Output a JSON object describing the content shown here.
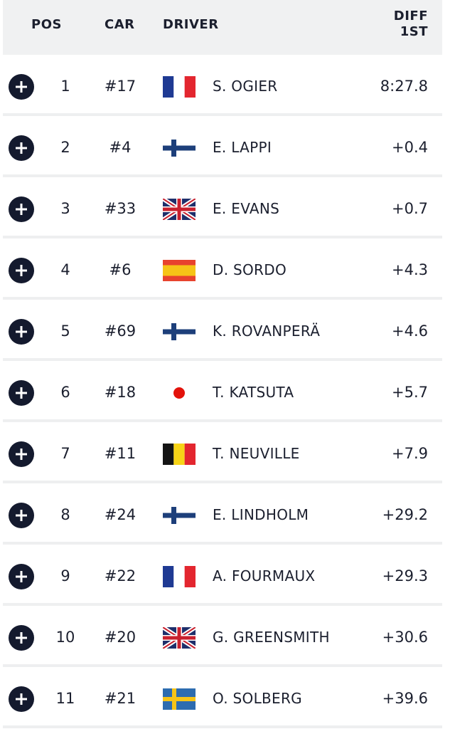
{
  "header": {
    "pos": "POS",
    "car": "CAR",
    "driver": "DRIVER",
    "diff_line1": "DIFF",
    "diff_line2": "1ST"
  },
  "rows": [
    {
      "pos": "1",
      "car": "#17",
      "driver": "S. OGIER",
      "diff": "8:27.8",
      "flag": "france"
    },
    {
      "pos": "2",
      "car": "#4",
      "driver": "E. LAPPI",
      "diff": "+0.4",
      "flag": "finland"
    },
    {
      "pos": "3",
      "car": "#33",
      "driver": "E. EVANS",
      "diff": "+0.7",
      "flag": "united-kingdom"
    },
    {
      "pos": "4",
      "car": "#6",
      "driver": "D. SORDO",
      "diff": "+4.3",
      "flag": "spain"
    },
    {
      "pos": "5",
      "car": "#69",
      "driver": "K. ROVANPERÄ",
      "diff": "+4.6",
      "flag": "finland"
    },
    {
      "pos": "6",
      "car": "#18",
      "driver": "T. KATSUTA",
      "diff": "+5.7",
      "flag": "japan"
    },
    {
      "pos": "7",
      "car": "#11",
      "driver": "T. NEUVILLE",
      "diff": "+7.9",
      "flag": "belgium"
    },
    {
      "pos": "8",
      "car": "#24",
      "driver": "E. LINDHOLM",
      "diff": "+29.2",
      "flag": "finland"
    },
    {
      "pos": "9",
      "car": "#22",
      "driver": "A. FOURMAUX",
      "diff": "+29.3",
      "flag": "france"
    },
    {
      "pos": "10",
      "car": "#20",
      "driver": "G. GREENSMITH",
      "diff": "+30.6",
      "flag": "united-kingdom"
    },
    {
      "pos": "11",
      "car": "#21",
      "driver": "O. SOLBERG",
      "diff": "+39.6",
      "flag": "sweden"
    }
  ],
  "icons": {
    "expand": "plus-circle-icon"
  },
  "colors": {
    "text": "#1b1f2e",
    "header_bg": "#f0f1f2",
    "expand_button": "#141a2e"
  }
}
